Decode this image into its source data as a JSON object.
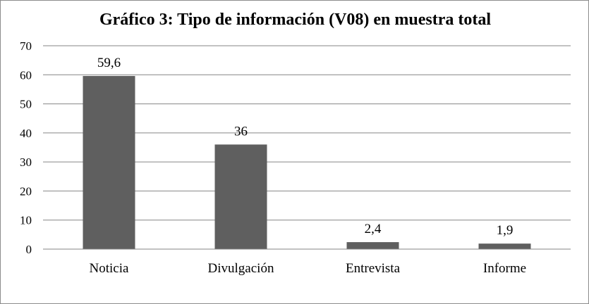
{
  "chart_data": {
    "type": "bar",
    "title": "Gráfico 3: Tipo de información (V08) en muestra total",
    "categories": [
      "Noticia",
      "Divulgación",
      "Entrevista",
      "Informe"
    ],
    "values": [
      59.6,
      36,
      2.4,
      1.9
    ],
    "value_labels": [
      "59,6",
      "36",
      "2,4",
      "1,9"
    ],
    "ylim": [
      0,
      70
    ],
    "yticks": [
      0,
      10,
      20,
      30,
      40,
      50,
      60,
      70
    ],
    "grid": true,
    "legend": "none",
    "bar_color": "#5f5f5f",
    "grid_color": "#868686"
  }
}
